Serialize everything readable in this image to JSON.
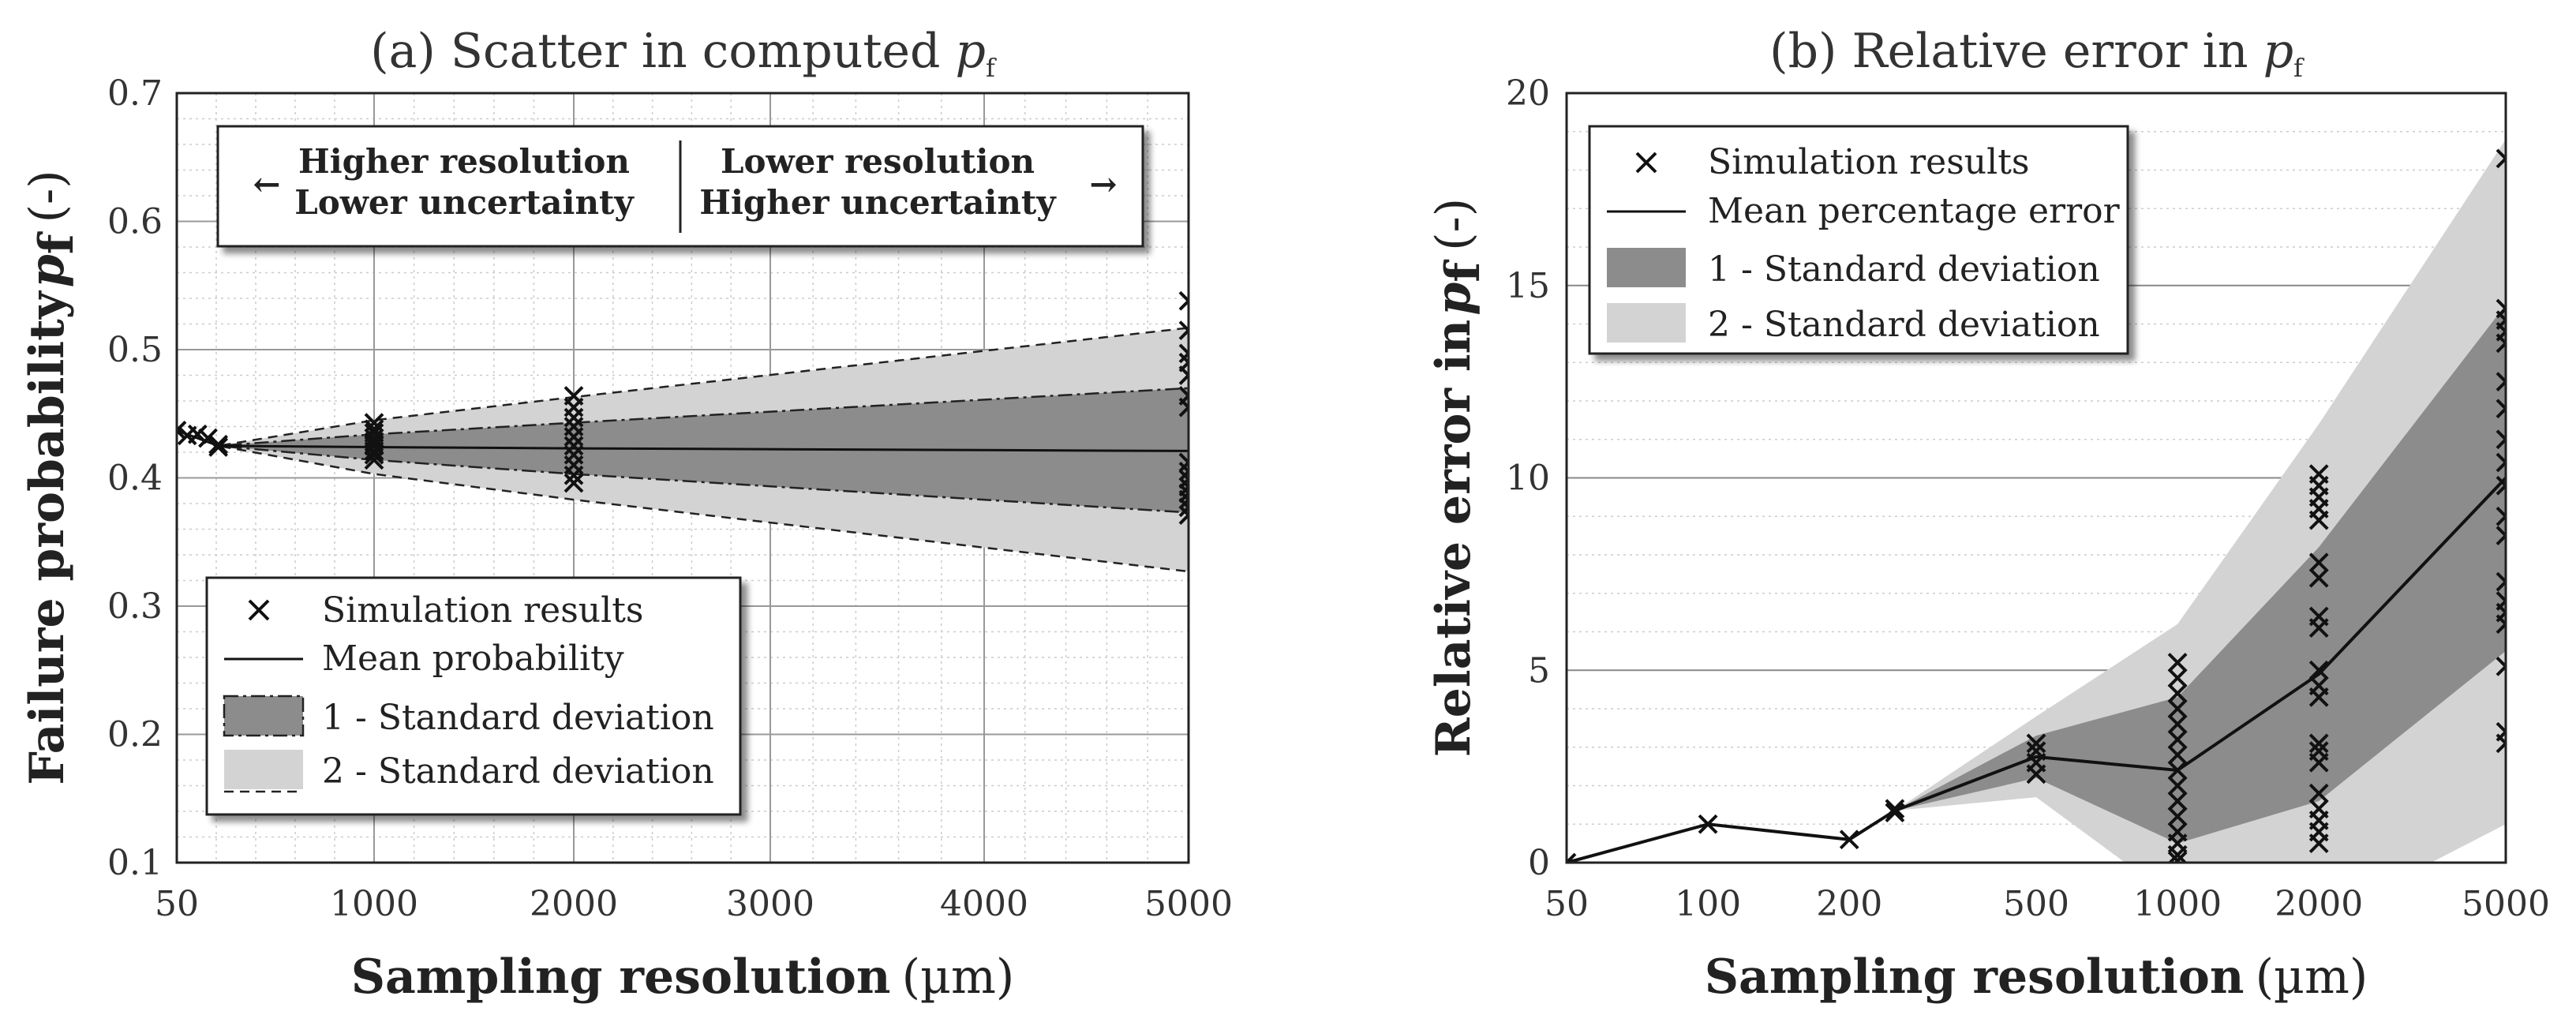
{
  "chart_data": [
    {
      "type": "line",
      "title": "(a) Scatter in computed",
      "title_symbol": "p",
      "title_symbol_sub": "f",
      "xlabel": "Sampling resolution",
      "xunit": "(µm)",
      "ylabel": "Failure probability",
      "ylabel_symbol": "p",
      "ylabel_symbol_sub": "f",
      "yunit": "(-)",
      "xlim": [
        50,
        5000
      ],
      "ylim": [
        0.1,
        0.7
      ],
      "x_ticks": [
        50,
        1000,
        2000,
        3000,
        4000,
        5000
      ],
      "y_ticks": [
        0.1,
        0.2,
        0.3,
        0.4,
        0.5,
        0.6,
        0.7
      ],
      "grid": true,
      "annotation": {
        "left_line1": "Higher resolution",
        "left_line2": "Lower uncertainty",
        "right_line1": "Lower resolution",
        "right_line2": "Higher uncertainty",
        "left_arrow": "←",
        "right_arrow": "→"
      },
      "legend": {
        "position": "lower-left",
        "entries": [
          "Simulation results",
          "Mean probability",
          "1 - Standard deviation",
          "2 - Standard deviation"
        ]
      },
      "mean_x": [
        50,
        250,
        1000,
        2000,
        5000
      ],
      "mean_y": [
        0.437,
        0.425,
        0.424,
        0.423,
        0.421
      ],
      "sd1_upper": [
        0.437,
        0.425,
        0.434,
        0.443,
        0.47
      ],
      "sd1_lower": [
        0.437,
        0.425,
        0.414,
        0.403,
        0.373
      ],
      "sd2_upper": [
        0.437,
        0.425,
        0.445,
        0.463,
        0.517
      ],
      "sd2_lower": [
        0.437,
        0.425,
        0.403,
        0.383,
        0.327
      ],
      "scatter": [
        {
          "x": 50,
          "y": [
            0.437
          ]
        },
        {
          "x": 100,
          "y": [
            0.433
          ]
        },
        {
          "x": 150,
          "y": [
            0.434
          ]
        },
        {
          "x": 200,
          "y": [
            0.431
          ]
        },
        {
          "x": 250,
          "y": [
            0.426,
            0.424
          ]
        },
        {
          "x": 1000,
          "y": [
            0.443,
            0.438,
            0.435,
            0.431,
            0.428,
            0.425,
            0.421,
            0.418,
            0.414
          ]
        },
        {
          "x": 2000,
          "y": [
            0.464,
            0.455,
            0.447,
            0.44,
            0.432,
            0.425,
            0.418,
            0.41,
            0.402,
            0.396
          ]
        },
        {
          "x": 5000,
          "y": [
            0.538,
            0.515,
            0.497,
            0.49,
            0.48,
            0.464,
            0.455,
            0.412,
            0.405,
            0.399,
            0.393,
            0.388,
            0.383,
            0.377,
            0.371
          ]
        }
      ]
    },
    {
      "type": "line",
      "title": "(b) Relative error in",
      "title_symbol": "p",
      "title_symbol_sub": "f",
      "xlabel": "Sampling resolution",
      "xunit": "(µm)",
      "ylabel": "Relative error in",
      "ylabel_symbol": "p",
      "ylabel_symbol_sub": "f",
      "yunit": "(-)",
      "xscale": "log",
      "xlim": [
        50,
        5000
      ],
      "ylim": [
        0,
        20
      ],
      "x_ticks": [
        50,
        100,
        200,
        500,
        1000,
        2000,
        5000
      ],
      "y_ticks": [
        0,
        5,
        10,
        15,
        20
      ],
      "grid": true,
      "legend": {
        "position": "top-left",
        "entries": [
          "Simulation results",
          "Mean percentage error",
          "1 - Standard deviation",
          "2 - Standard deviation"
        ]
      },
      "mean_x": [
        50,
        100,
        200,
        250,
        500,
        1000,
        2000,
        5000
      ],
      "mean_y": [
        0,
        1.0,
        0.6,
        1.35,
        2.75,
        2.4,
        4.9,
        10.0
      ],
      "sd1_upper": [
        0,
        1.0,
        0.6,
        1.35,
        3.3,
        4.3,
        8.2,
        14.5
      ],
      "sd1_lower": [
        0,
        1.0,
        0.6,
        1.35,
        2.2,
        0.5,
        1.6,
        5.5
      ],
      "sd2_upper": [
        0,
        1.0,
        0.6,
        1.35,
        3.8,
        6.2,
        11.4,
        18.8
      ],
      "sd2_lower": [
        0,
        1.0,
        0.6,
        1.35,
        1.7,
        -1.0,
        -1.5,
        1.0
      ],
      "scatter": [
        {
          "x": 50,
          "y": [
            0
          ]
        },
        {
          "x": 100,
          "y": [
            1.0
          ]
        },
        {
          "x": 200,
          "y": [
            0.6
          ]
        },
        {
          "x": 250,
          "y": [
            1.3,
            1.4
          ]
        },
        {
          "x": 500,
          "y": [
            2.3,
            2.6,
            2.9,
            3.1
          ]
        },
        {
          "x": 1000,
          "y": [
            5.2,
            4.8,
            4.4,
            4.0,
            3.6,
            3.2,
            2.8,
            2.4,
            2.0,
            1.6,
            1.2,
            0.8,
            0.5,
            0.2,
            0.05
          ]
        },
        {
          "x": 2000,
          "y": [
            10.1,
            9.8,
            9.5,
            9.2,
            8.9,
            7.8,
            7.4,
            6.4,
            6.1,
            5.0,
            4.6,
            4.3,
            3.1,
            2.9,
            2.6,
            1.8,
            1.4,
            1.1,
            0.8,
            0.5
          ]
        },
        {
          "x": 5000,
          "y": [
            18.3,
            14.4,
            14.1,
            13.8,
            13.5,
            12.5,
            11.8,
            11.0,
            10.4,
            9.8,
            9.0,
            8.5,
            7.3,
            6.8,
            6.5,
            6.2,
            5.1,
            3.4,
            3.1
          ]
        }
      ]
    }
  ]
}
